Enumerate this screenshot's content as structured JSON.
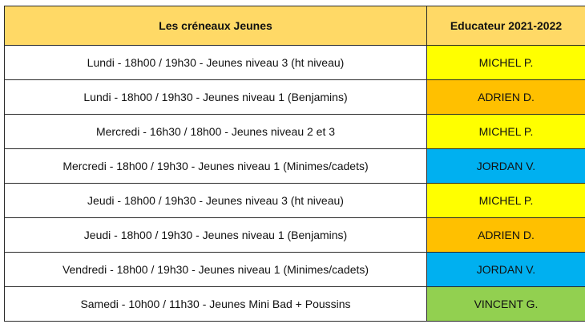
{
  "header": {
    "slots_title": "Les créneaux Jeunes",
    "coach_title": "Educateur 2021-2022",
    "background": "#ffd966"
  },
  "rows": [
    {
      "slot": "Lundi - 18h00 / 19h30 - Jeunes niveau 3 (ht niveau)",
      "coach": "MICHEL P.",
      "coach_color": "#ffff00"
    },
    {
      "slot": "Lundi - 18h00 / 19h30 - Jeunes niveau 1 (Benjamins)",
      "coach": "ADRIEN D.",
      "coach_color": "#ffc000"
    },
    {
      "slot": "Mercredi - 16h30 / 18h00 - Jeunes niveau 2 et 3",
      "coach": "MICHEL P.",
      "coach_color": "#ffff00"
    },
    {
      "slot": "Mercredi - 18h00 / 19h30 - Jeunes niveau 1 (Minimes/cadets)",
      "coach": "JORDAN V.",
      "coach_color": "#00b0f0"
    },
    {
      "slot": "Jeudi - 18h00 / 19h30 - Jeunes niveau 3 (ht niveau)",
      "coach": "MICHEL P.",
      "coach_color": "#ffff00"
    },
    {
      "slot": "Jeudi - 18h00 / 19h30 - Jeunes niveau 1 (Benjamins)",
      "coach": "ADRIEN D.",
      "coach_color": "#ffc000"
    },
    {
      "slot": "Vendredi - 18h00 / 19h30 - Jeunes niveau 1 (Minimes/cadets)",
      "coach": "JORDAN V.",
      "coach_color": "#00b0f0"
    },
    {
      "slot": "Samedi - 10h00 / 11h30 - Jeunes Mini Bad + Poussins",
      "coach": "VINCENT G.",
      "coach_color": "#92d050"
    }
  ]
}
